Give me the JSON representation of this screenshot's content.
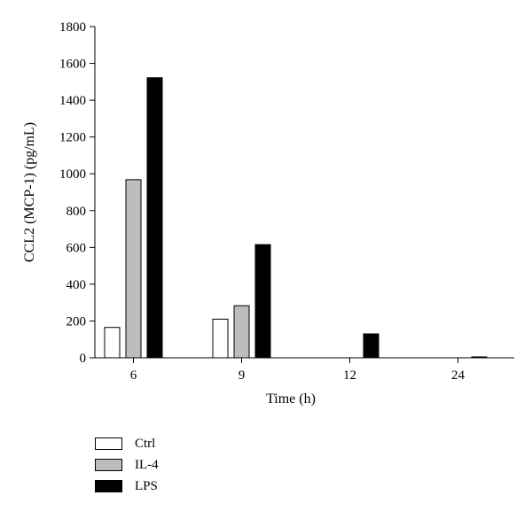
{
  "chart_data": {
    "type": "bar",
    "categories": [
      "6",
      "9",
      "12",
      "24"
    ],
    "series": [
      {
        "name": "Ctrl",
        "color": "#ffffff",
        "values": [
          165,
          210,
          0,
          0
        ]
      },
      {
        "name": "IL-4",
        "color": "#bdbdbd",
        "values": [
          968,
          283,
          0,
          0
        ]
      },
      {
        "name": "LPS",
        "color": "#000000",
        "values": [
          1522,
          615,
          130,
          5
        ]
      }
    ],
    "xlabel": "Time (h)",
    "ylabel": "CCL2 (MCP-1)  (pg/mL)",
    "ylim": [
      0,
      1800
    ],
    "yticks": [
      "0",
      "200",
      "400",
      "600",
      "800",
      "1000",
      "1200",
      "1400",
      "1600",
      "1800"
    ],
    "grid": false,
    "legend_position": "bottom-left"
  }
}
